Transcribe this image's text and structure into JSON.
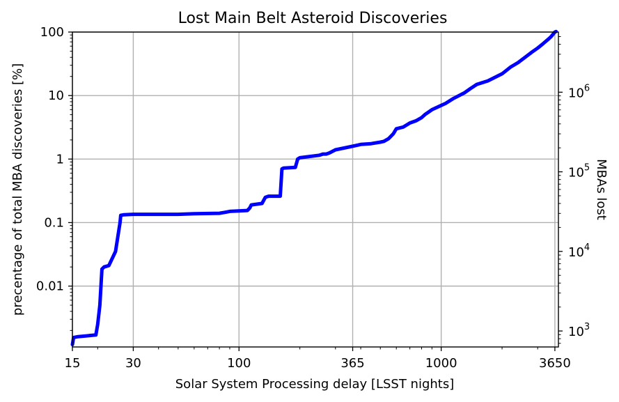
{
  "chart_data": {
    "type": "line",
    "title": "Lost Main Belt Asteroid Discoveries",
    "xlabel": "Solar System Processing delay [LSST nights]",
    "ylabel": "precentage of total MBA discoveries [%]",
    "ylabel_right": "MBAs lost",
    "x_scale": "log",
    "y_scale": "log",
    "xlim": [
      15,
      3800
    ],
    "ylim": [
      0.0011,
      100
    ],
    "y_right_lim": [
      630,
      5700000
    ],
    "x_ticks": [
      15,
      30,
      100,
      365,
      1000,
      3650
    ],
    "x_tick_labels": [
      "15",
      "30",
      "100",
      "365",
      "1000",
      "3650"
    ],
    "y_ticks": [
      0.01,
      0.1,
      1,
      10,
      100
    ],
    "y_tick_labels": [
      "0.01",
      "0.1",
      "1",
      "10",
      "100"
    ],
    "y_right_ticks": [
      {
        "value": 1000,
        "base": "10",
        "exp": "3"
      },
      {
        "value": 10000,
        "base": "10",
        "exp": "4"
      },
      {
        "value": 100000,
        "base": "10",
        "exp": "5"
      },
      {
        "value": 1000000,
        "base": "10",
        "exp": "6"
      }
    ],
    "grid": true,
    "series": [
      {
        "color": "#0000ff",
        "x": [
          15,
          15.2,
          16,
          19.6,
          20,
          20.5,
          21.0,
          21.5,
          22.7,
          24.5,
          25.8,
          26.0,
          27,
          30,
          50,
          60,
          80,
          85,
          90,
          110,
          113,
          115,
          130,
          135,
          140,
          160,
          163,
          166,
          190,
          195,
          200,
          250,
          260,
          270,
          280,
          300,
          350,
          400,
          450,
          500,
          520,
          550,
          580,
          600,
          650,
          700,
          750,
          800,
          830,
          900,
          1000,
          1050,
          1150,
          1300,
          1400,
          1500,
          1700,
          2000,
          2200,
          2400,
          2600,
          2800,
          3000,
          3200,
          3400,
          3500,
          3650,
          3700
        ],
        "y": [
          0.0012,
          0.00155,
          0.0016,
          0.0017,
          0.0025,
          0.005,
          0.0185,
          0.02,
          0.021,
          0.035,
          0.1,
          0.13,
          0.133,
          0.135,
          0.135,
          0.138,
          0.14,
          0.145,
          0.15,
          0.155,
          0.17,
          0.19,
          0.2,
          0.25,
          0.26,
          0.26,
          0.7,
          0.72,
          0.74,
          1.0,
          1.05,
          1.15,
          1.2,
          1.2,
          1.25,
          1.4,
          1.55,
          1.7,
          1.75,
          1.85,
          1.9,
          2.1,
          2.5,
          3.0,
          3.2,
          3.7,
          4.0,
          4.5,
          5.0,
          6.0,
          7.0,
          7.5,
          9.0,
          11.0,
          13.0,
          15.0,
          17.0,
          22.0,
          28.0,
          33.0,
          40.0,
          48.0,
          56.0,
          66.0,
          78.0,
          85.0,
          100.0,
          102.0
        ]
      }
    ]
  }
}
